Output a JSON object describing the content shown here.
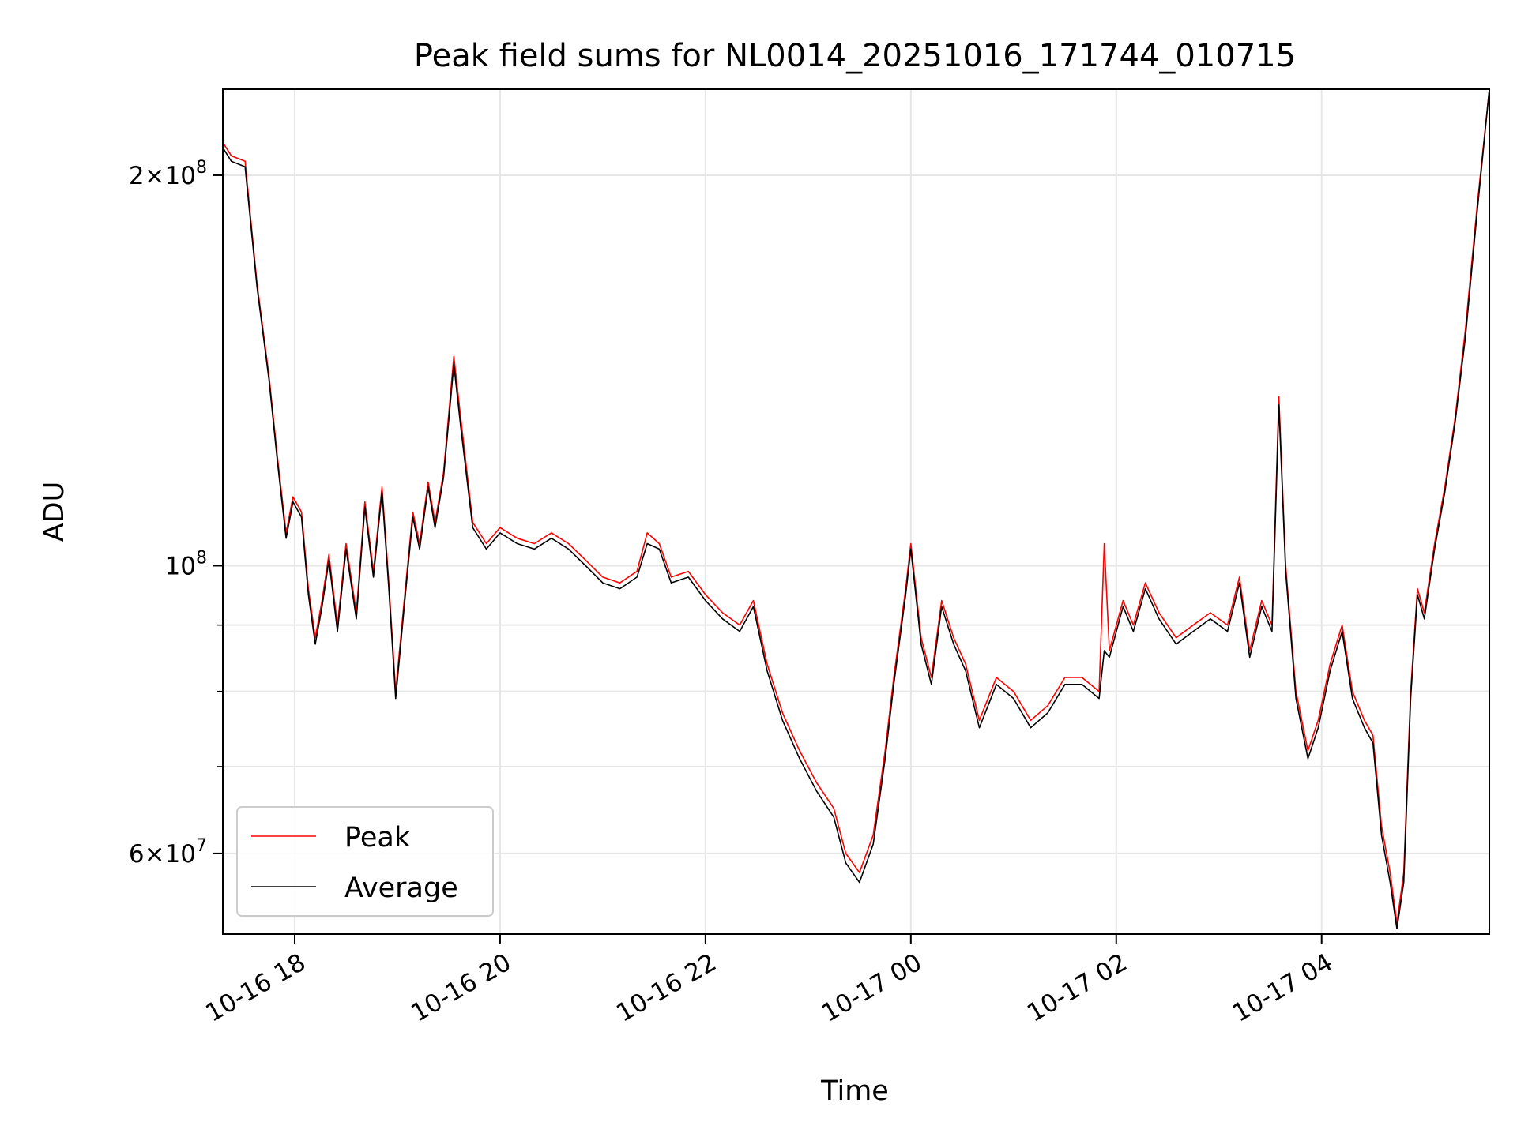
{
  "chart_data": {
    "type": "line",
    "title": "Peak field sums for NL0014_20251016_171744_010715",
    "xlabel": "Time",
    "ylabel": "ADU",
    "yscale": "log",
    "ylim": [
      52000000,
      233000000
    ],
    "xlim": [
      "2025-10-16 17:18",
      "2025-10-17 05:38"
    ],
    "grid": true,
    "legend": {
      "position": "lower-left",
      "entries": [
        "Peak",
        "Average"
      ]
    },
    "x_ticks": [
      {
        "label": "10-16 18",
        "time": "2025-10-16 18:00"
      },
      {
        "label": "10-16 20",
        "time": "2025-10-16 20:00"
      },
      {
        "label": "10-16 22",
        "time": "2025-10-16 22:00"
      },
      {
        "label": "10-17 00",
        "time": "2025-10-17 00:00"
      },
      {
        "label": "10-17 02",
        "time": "2025-10-17 02:00"
      },
      {
        "label": "10-17 04",
        "time": "2025-10-17 04:00"
      }
    ],
    "y_ticks_major": [
      {
        "base": "2",
        "exp": "8",
        "value": 200000000
      },
      {
        "base": "",
        "exp": "8",
        "value": 100000000
      },
      {
        "base": "6",
        "exp": "7",
        "value": 60000000
      }
    ],
    "y_ticks_minor": [
      70000000,
      80000000,
      90000000
    ],
    "series": [
      {
        "name": "Peak",
        "color": "#ff0000",
        "points": [
          [
            "2025-10-16 17:18",
            212000000
          ],
          [
            "2025-10-16 17:23",
            207000000
          ],
          [
            "2025-10-16 17:31",
            205000000
          ],
          [
            "2025-10-16 17:38",
            165000000
          ],
          [
            "2025-10-16 17:45",
            140000000
          ],
          [
            "2025-10-16 17:50",
            121000000
          ],
          [
            "2025-10-16 17:55",
            106000000
          ],
          [
            "2025-10-16 17:59",
            113000000
          ],
          [
            "2025-10-16 18:04",
            110000000
          ],
          [
            "2025-10-16 18:08",
            96000000
          ],
          [
            "2025-10-16 18:12",
            88000000
          ],
          [
            "2025-10-16 18:16",
            94000000
          ],
          [
            "2025-10-16 18:20",
            102000000
          ],
          [
            "2025-10-16 18:25",
            90000000
          ],
          [
            "2025-10-16 18:30",
            104000000
          ],
          [
            "2025-10-16 18:36",
            92000000
          ],
          [
            "2025-10-16 18:41",
            112000000
          ],
          [
            "2025-10-16 18:46",
            99000000
          ],
          [
            "2025-10-16 18:51",
            115000000
          ],
          [
            "2025-10-16 18:55",
            97000000
          ],
          [
            "2025-10-16 18:59",
            80000000
          ],
          [
            "2025-10-16 19:04",
            94000000
          ],
          [
            "2025-10-16 19:09",
            110000000
          ],
          [
            "2025-10-16 19:13",
            104000000
          ],
          [
            "2025-10-16 19:18",
            116000000
          ],
          [
            "2025-10-16 19:22",
            108000000
          ],
          [
            "2025-10-16 19:27",
            118000000
          ],
          [
            "2025-10-16 19:33",
            145000000
          ],
          [
            "2025-10-16 19:37",
            130000000
          ],
          [
            "2025-10-16 19:44",
            108000000
          ],
          [
            "2025-10-16 19:52",
            104000000
          ],
          [
            "2025-10-16 20:00",
            107000000
          ],
          [
            "2025-10-16 20:10",
            105000000
          ],
          [
            "2025-10-16 20:20",
            104000000
          ],
          [
            "2025-10-16 20:30",
            106000000
          ],
          [
            "2025-10-16 20:40",
            104000000
          ],
          [
            "2025-10-16 20:50",
            101000000
          ],
          [
            "2025-10-16 21:00",
            98000000
          ],
          [
            "2025-10-16 21:10",
            97000000
          ],
          [
            "2025-10-16 21:20",
            99000000
          ],
          [
            "2025-10-16 21:26",
            106000000
          ],
          [
            "2025-10-16 21:33",
            104000000
          ],
          [
            "2025-10-16 21:40",
            98000000
          ],
          [
            "2025-10-16 21:50",
            99000000
          ],
          [
            "2025-10-16 22:00",
            95000000
          ],
          [
            "2025-10-16 22:10",
            92000000
          ],
          [
            "2025-10-16 22:20",
            90000000
          ],
          [
            "2025-10-16 22:28",
            94000000
          ],
          [
            "2025-10-16 22:36",
            84000000
          ],
          [
            "2025-10-16 22:45",
            77000000
          ],
          [
            "2025-10-16 22:55",
            72000000
          ],
          [
            "2025-10-16 23:05",
            68000000
          ],
          [
            "2025-10-16 23:15",
            65000000
          ],
          [
            "2025-10-16 23:22",
            60000000
          ],
          [
            "2025-10-16 23:30",
            58000000
          ],
          [
            "2025-10-16 23:38",
            62000000
          ],
          [
            "2025-10-16 23:45",
            72000000
          ],
          [
            "2025-10-16 23:50",
            82000000
          ],
          [
            "2025-10-16 23:57",
            96000000
          ],
          [
            "2025-10-17 00:00",
            104000000
          ],
          [
            "2025-10-17 00:06",
            88000000
          ],
          [
            "2025-10-17 00:12",
            82000000
          ],
          [
            "2025-10-17 00:18",
            94000000
          ],
          [
            "2025-10-17 00:25",
            88000000
          ],
          [
            "2025-10-17 00:32",
            84000000
          ],
          [
            "2025-10-17 00:40",
            76000000
          ],
          [
            "2025-10-17 00:50",
            82000000
          ],
          [
            "2025-10-17 01:00",
            80000000
          ],
          [
            "2025-10-17 01:10",
            76000000
          ],
          [
            "2025-10-17 01:20",
            78000000
          ],
          [
            "2025-10-17 01:30",
            82000000
          ],
          [
            "2025-10-17 01:40",
            82000000
          ],
          [
            "2025-10-17 01:50",
            80000000
          ],
          [
            "2025-10-17 01:53",
            104000000
          ],
          [
            "2025-10-17 01:56",
            86000000
          ],
          [
            "2025-10-17 02:04",
            94000000
          ],
          [
            "2025-10-17 02:10",
            90000000
          ],
          [
            "2025-10-17 02:17",
            97000000
          ],
          [
            "2025-10-17 02:25",
            92000000
          ],
          [
            "2025-10-17 02:35",
            88000000
          ],
          [
            "2025-10-17 02:45",
            90000000
          ],
          [
            "2025-10-17 02:55",
            92000000
          ],
          [
            "2025-10-17 03:05",
            90000000
          ],
          [
            "2025-10-17 03:12",
            98000000
          ],
          [
            "2025-10-17 03:18",
            86000000
          ],
          [
            "2025-10-17 03:25",
            94000000
          ],
          [
            "2025-10-17 03:31",
            90000000
          ],
          [
            "2025-10-17 03:35",
            135000000
          ],
          [
            "2025-10-17 03:39",
            100000000
          ],
          [
            "2025-10-17 03:45",
            80000000
          ],
          [
            "2025-10-17 03:52",
            72000000
          ],
          [
            "2025-10-17 03:58",
            76000000
          ],
          [
            "2025-10-17 04:05",
            84000000
          ],
          [
            "2025-10-17 04:12",
            90000000
          ],
          [
            "2025-10-17 04:18",
            80000000
          ],
          [
            "2025-10-17 04:25",
            76000000
          ],
          [
            "2025-10-17 04:30",
            74000000
          ],
          [
            "2025-10-17 04:35",
            63000000
          ],
          [
            "2025-10-17 04:40",
            58000000
          ],
          [
            "2025-10-17 04:44",
            53000000
          ],
          [
            "2025-10-17 04:48",
            58000000
          ],
          [
            "2025-10-17 04:52",
            80000000
          ],
          [
            "2025-10-17 04:56",
            96000000
          ],
          [
            "2025-10-17 05:00",
            92000000
          ],
          [
            "2025-10-17 05:06",
            104000000
          ],
          [
            "2025-10-17 05:12",
            115000000
          ],
          [
            "2025-10-17 05:18",
            130000000
          ],
          [
            "2025-10-17 05:24",
            152000000
          ],
          [
            "2025-10-17 05:31",
            190000000
          ],
          [
            "2025-10-17 05:38",
            233000000
          ]
        ]
      },
      {
        "name": "Average",
        "color": "#000000",
        "points": [
          [
            "2025-10-16 17:18",
            210000000
          ],
          [
            "2025-10-16 17:23",
            205000000
          ],
          [
            "2025-10-16 17:31",
            203000000
          ],
          [
            "2025-10-16 17:38",
            164000000
          ],
          [
            "2025-10-16 17:45",
            139000000
          ],
          [
            "2025-10-16 17:50",
            120000000
          ],
          [
            "2025-10-16 17:55",
            105000000
          ],
          [
            "2025-10-16 17:59",
            112000000
          ],
          [
            "2025-10-16 18:04",
            109000000
          ],
          [
            "2025-10-16 18:08",
            95000000
          ],
          [
            "2025-10-16 18:12",
            87000000
          ],
          [
            "2025-10-16 18:16",
            93000000
          ],
          [
            "2025-10-16 18:20",
            101000000
          ],
          [
            "2025-10-16 18:25",
            89000000
          ],
          [
            "2025-10-16 18:30",
            103000000
          ],
          [
            "2025-10-16 18:36",
            91000000
          ],
          [
            "2025-10-16 18:41",
            111000000
          ],
          [
            "2025-10-16 18:46",
            98000000
          ],
          [
            "2025-10-16 18:51",
            114000000
          ],
          [
            "2025-10-16 18:55",
            96000000
          ],
          [
            "2025-10-16 18:59",
            79000000
          ],
          [
            "2025-10-16 19:04",
            93000000
          ],
          [
            "2025-10-16 19:09",
            109000000
          ],
          [
            "2025-10-16 19:13",
            103000000
          ],
          [
            "2025-10-16 19:18",
            115000000
          ],
          [
            "2025-10-16 19:22",
            107000000
          ],
          [
            "2025-10-16 19:27",
            117000000
          ],
          [
            "2025-10-16 19:33",
            143000000
          ],
          [
            "2025-10-16 19:37",
            128000000
          ],
          [
            "2025-10-16 19:44",
            107000000
          ],
          [
            "2025-10-16 19:52",
            103000000
          ],
          [
            "2025-10-16 20:00",
            106000000
          ],
          [
            "2025-10-16 20:10",
            104000000
          ],
          [
            "2025-10-16 20:20",
            103000000
          ],
          [
            "2025-10-16 20:30",
            105000000
          ],
          [
            "2025-10-16 20:40",
            103000000
          ],
          [
            "2025-10-16 20:50",
            100000000
          ],
          [
            "2025-10-16 21:00",
            97000000
          ],
          [
            "2025-10-16 21:10",
            96000000
          ],
          [
            "2025-10-16 21:20",
            98000000
          ],
          [
            "2025-10-16 21:26",
            104000000
          ],
          [
            "2025-10-16 21:33",
            103000000
          ],
          [
            "2025-10-16 21:40",
            97000000
          ],
          [
            "2025-10-16 21:50",
            98000000
          ],
          [
            "2025-10-16 22:00",
            94000000
          ],
          [
            "2025-10-16 22:10",
            91000000
          ],
          [
            "2025-10-16 22:20",
            89000000
          ],
          [
            "2025-10-16 22:28",
            93000000
          ],
          [
            "2025-10-16 22:36",
            83000000
          ],
          [
            "2025-10-16 22:45",
            76000000
          ],
          [
            "2025-10-16 22:55",
            71000000
          ],
          [
            "2025-10-16 23:05",
            67000000
          ],
          [
            "2025-10-16 23:15",
            64000000
          ],
          [
            "2025-10-16 23:22",
            59000000
          ],
          [
            "2025-10-16 23:30",
            57000000
          ],
          [
            "2025-10-16 23:38",
            61000000
          ],
          [
            "2025-10-16 23:45",
            71000000
          ],
          [
            "2025-10-16 23:50",
            81000000
          ],
          [
            "2025-10-16 23:57",
            95000000
          ],
          [
            "2025-10-17 00:00",
            103000000
          ],
          [
            "2025-10-17 00:06",
            87000000
          ],
          [
            "2025-10-17 00:12",
            81000000
          ],
          [
            "2025-10-17 00:18",
            93000000
          ],
          [
            "2025-10-17 00:25",
            87000000
          ],
          [
            "2025-10-17 00:32",
            83000000
          ],
          [
            "2025-10-17 00:40",
            75000000
          ],
          [
            "2025-10-17 00:50",
            81000000
          ],
          [
            "2025-10-17 01:00",
            79000000
          ],
          [
            "2025-10-17 01:10",
            75000000
          ],
          [
            "2025-10-17 01:20",
            77000000
          ],
          [
            "2025-10-17 01:30",
            81000000
          ],
          [
            "2025-10-17 01:40",
            81000000
          ],
          [
            "2025-10-17 01:50",
            79000000
          ],
          [
            "2025-10-17 01:53",
            86000000
          ],
          [
            "2025-10-17 01:56",
            85000000
          ],
          [
            "2025-10-17 02:04",
            93000000
          ],
          [
            "2025-10-17 02:10",
            89000000
          ],
          [
            "2025-10-17 02:17",
            96000000
          ],
          [
            "2025-10-17 02:25",
            91000000
          ],
          [
            "2025-10-17 02:35",
            87000000
          ],
          [
            "2025-10-17 02:45",
            89000000
          ],
          [
            "2025-10-17 02:55",
            91000000
          ],
          [
            "2025-10-17 03:05",
            89000000
          ],
          [
            "2025-10-17 03:12",
            97000000
          ],
          [
            "2025-10-17 03:18",
            85000000
          ],
          [
            "2025-10-17 03:25",
            93000000
          ],
          [
            "2025-10-17 03:31",
            89000000
          ],
          [
            "2025-10-17 03:35",
            133000000
          ],
          [
            "2025-10-17 03:39",
            99000000
          ],
          [
            "2025-10-17 03:45",
            79000000
          ],
          [
            "2025-10-17 03:52",
            71000000
          ],
          [
            "2025-10-17 03:58",
            75000000
          ],
          [
            "2025-10-17 04:05",
            83000000
          ],
          [
            "2025-10-17 04:12",
            89000000
          ],
          [
            "2025-10-17 04:18",
            79000000
          ],
          [
            "2025-10-17 04:25",
            75000000
          ],
          [
            "2025-10-17 04:30",
            73000000
          ],
          [
            "2025-10-17 04:35",
            62000000
          ],
          [
            "2025-10-17 04:40",
            57000000
          ],
          [
            "2025-10-17 04:44",
            52500000
          ],
          [
            "2025-10-17 04:48",
            57000000
          ],
          [
            "2025-10-17 04:52",
            79000000
          ],
          [
            "2025-10-17 04:56",
            95000000
          ],
          [
            "2025-10-17 05:00",
            91000000
          ],
          [
            "2025-10-17 05:06",
            103000000
          ],
          [
            "2025-10-17 05:12",
            114000000
          ],
          [
            "2025-10-17 05:18",
            129000000
          ],
          [
            "2025-10-17 05:24",
            150000000
          ],
          [
            "2025-10-17 05:31",
            188000000
          ],
          [
            "2025-10-17 05:38",
            233000000
          ]
        ]
      }
    ]
  }
}
